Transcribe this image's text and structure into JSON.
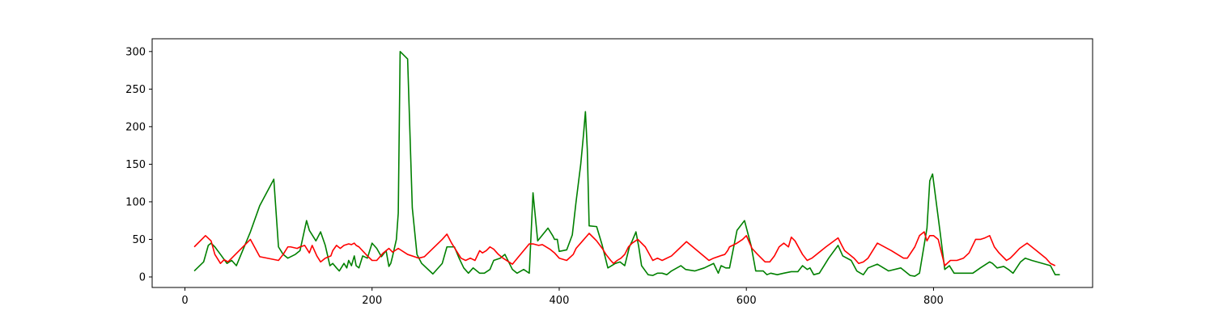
{
  "chart_data": {
    "type": "line",
    "title": "",
    "xlabel": "",
    "ylabel": "",
    "xlim": [
      -35,
      970
    ],
    "ylim": [
      -14,
      317
    ],
    "xticks": [
      0,
      200,
      400,
      600,
      800
    ],
    "yticks": [
      0,
      50,
      100,
      150,
      200,
      250,
      300
    ],
    "grid": false,
    "legend": "none",
    "series": [
      {
        "color": "#008000",
        "x": [
          10,
          20,
          25,
          28,
          32,
          38,
          45,
          50,
          55,
          70,
          80,
          95,
          100,
          105,
          110,
          118,
          123,
          130,
          133,
          140,
          145,
          150,
          155,
          158,
          162,
          165,
          170,
          173,
          175,
          178,
          181,
          183,
          186,
          190,
          195,
          200,
          205,
          210,
          215,
          218,
          220,
          222,
          226,
          228,
          230,
          238,
          243,
          248,
          253,
          265,
          275,
          280,
          288,
          293,
          298,
          303,
          308,
          315,
          320,
          326,
          330,
          337,
          342,
          350,
          355,
          362,
          368,
          372,
          377,
          388,
          393,
          395,
          398,
          400,
          408,
          414,
          418,
          423,
          426,
          428,
          430,
          432,
          440,
          446,
          452,
          460,
          465,
          470,
          475,
          478,
          482,
          485,
          488,
          495,
          500,
          505,
          510,
          515,
          520,
          530,
          535,
          545,
          555,
          565,
          570,
          573,
          578,
          582,
          590,
          598,
          605,
          610,
          618,
          622,
          626,
          633,
          640,
          648,
          655,
          660,
          665,
          668,
          672,
          678,
          683,
          688,
          698,
          703,
          712,
          718,
          722,
          725,
          730,
          740,
          752,
          765,
          775,
          780,
          785,
          793,
          796,
          799,
          807,
          812,
          817,
          822,
          830,
          842,
          850,
          860,
          863,
          868,
          875,
          880,
          885,
          893,
          898,
          905,
          925,
          930,
          935
        ],
        "values": [
          8,
          20,
          42,
          45,
          40,
          30,
          18,
          22,
          15,
          60,
          95,
          130,
          40,
          30,
          25,
          30,
          35,
          75,
          62,
          48,
          60,
          42,
          15,
          18,
          12,
          8,
          18,
          12,
          22,
          15,
          28,
          15,
          12,
          28,
          25,
          45,
          38,
          27,
          35,
          14,
          18,
          28,
          50,
          85,
          300,
          290,
          92,
          30,
          18,
          4,
          18,
          40,
          40,
          25,
          12,
          5,
          12,
          5,
          5,
          10,
          22,
          25,
          30,
          10,
          5,
          10,
          5,
          112,
          48,
          65,
          55,
          50,
          50,
          34,
          36,
          56,
          100,
          150,
          190,
          220,
          170,
          68,
          67,
          42,
          12,
          18,
          20,
          15,
          40,
          48,
          60,
          40,
          15,
          3,
          2,
          5,
          5,
          3,
          8,
          15,
          10,
          8,
          12,
          18,
          5,
          15,
          12,
          12,
          62,
          75,
          42,
          8,
          8,
          3,
          5,
          3,
          5,
          7,
          7,
          15,
          10,
          12,
          3,
          5,
          15,
          25,
          42,
          28,
          22,
          8,
          5,
          3,
          12,
          17,
          8,
          12,
          2,
          1,
          5,
          65,
          128,
          137,
          60,
          10,
          15,
          5,
          5,
          5,
          12,
          20,
          18,
          12,
          14,
          10,
          5,
          20,
          25,
          22,
          15,
          3,
          3
        ]
      },
      {
        "color": "#ff0000",
        "x": [
          10,
          22,
          28,
          32,
          38,
          42,
          46,
          50,
          70,
          80,
          100,
          105,
          110,
          113,
          120,
          123,
          128,
          133,
          136,
          141,
          145,
          150,
          156,
          158,
          162,
          166,
          170,
          175,
          178,
          181,
          183,
          186,
          195,
          200,
          205,
          212,
          218,
          222,
          228,
          238,
          250,
          256,
          275,
          280,
          285,
          295,
          300,
          305,
          310,
          315,
          318,
          322,
          326,
          330,
          335,
          340,
          350,
          368,
          372,
          378,
          382,
          390,
          395,
          400,
          408,
          415,
          418,
          425,
          432,
          440,
          446,
          450,
          455,
          458,
          462,
          466,
          470,
          474,
          478,
          484,
          492,
          500,
          505,
          510,
          520,
          536,
          560,
          565,
          572,
          577,
          580,
          582,
          590,
          596,
          600,
          606,
          612,
          620,
          625,
          630,
          635,
          640,
          645,
          648,
          652,
          660,
          665,
          670,
          685,
          698,
          702,
          705,
          710,
          715,
          720,
          725,
          730,
          740,
          755,
          768,
          772,
          780,
          785,
          790,
          793,
          796,
          800,
          805,
          812,
          818,
          825,
          832,
          838,
          845,
          850,
          855,
          860,
          865,
          870,
          878,
          882,
          886,
          892,
          900,
          910,
          920,
          925,
          930
        ],
        "values": [
          40,
          55,
          48,
          30,
          18,
          23,
          20,
          25,
          50,
          27,
          22,
          30,
          40,
          40,
          38,
          40,
          42,
          32,
          42,
          28,
          20,
          25,
          28,
          35,
          42,
          38,
          42,
          44,
          43,
          45,
          42,
          40,
          28,
          22,
          22,
          32,
          38,
          33,
          38,
          30,
          25,
          27,
          50,
          57,
          45,
          25,
          22,
          25,
          22,
          35,
          32,
          35,
          40,
          37,
          30,
          25,
          17,
          44,
          44,
          42,
          43,
          37,
          32,
          25,
          22,
          30,
          38,
          48,
          58,
          48,
          38,
          30,
          22,
          18,
          22,
          25,
          30,
          40,
          45,
          50,
          40,
          22,
          25,
          22,
          28,
          47,
          22,
          25,
          28,
          30,
          35,
          40,
          45,
          50,
          55,
          38,
          30,
          20,
          20,
          28,
          40,
          45,
          40,
          53,
          48,
          30,
          22,
          25,
          40,
          52,
          42,
          35,
          30,
          25,
          18,
          20,
          25,
          45,
          35,
          25,
          25,
          40,
          55,
          60,
          48,
          55,
          55,
          50,
          15,
          22,
          22,
          25,
          32,
          50,
          50,
          52,
          55,
          40,
          32,
          22,
          25,
          30,
          38,
          45,
          35,
          25,
          18,
          15
        ]
      }
    ]
  }
}
